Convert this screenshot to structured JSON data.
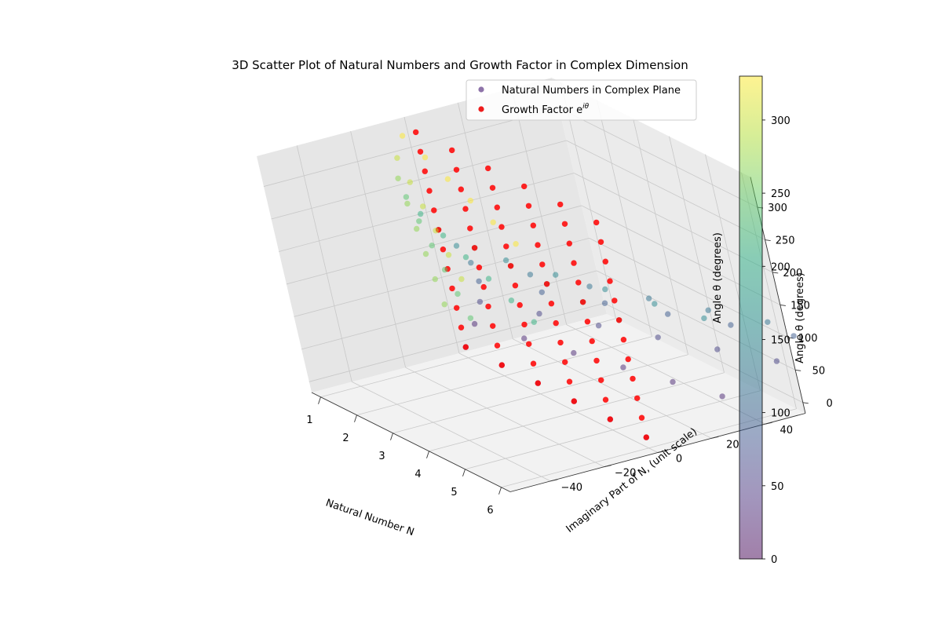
{
  "chart_data": {
    "type": "scatter",
    "projection": "3d",
    "title": "3D Scatter Plot of Natural Numbers and Growth Factor in Complex Dimension",
    "xlabel": "Natural Number N",
    "ylabel": "Imaginary Part of N, (unit scale)",
    "zlabel": "Angle θ (degrees)",
    "xlim": [
      0.75,
      6.25
    ],
    "ylim": [
      -55,
      55
    ],
    "zlim": [
      -16.5,
      346.5
    ],
    "x_ticks": [
      "1",
      "2",
      "3",
      "4",
      "5",
      "6"
    ],
    "y_ticks": [
      "−40",
      "−20",
      "0",
      "20",
      "40"
    ],
    "z_ticks": [
      "0",
      "50",
      "100",
      "150",
      "200",
      "250",
      "300"
    ],
    "grid": true,
    "legend_placement": "upper right",
    "legend": [
      {
        "label": "Natural Numbers in Complex Plane",
        "color": "#7a5a9a",
        "marker": "circle"
      },
      {
        "label": "Growth Factor e",
        "label_superscript": "iθ",
        "color": "#ee1c1c",
        "marker": "circle"
      }
    ],
    "colorbar": {
      "label": "Angle θ (degrees)",
      "colormap": "viridis",
      "alpha": 0.5,
      "range": [
        0,
        330
      ],
      "ticks": [
        "0",
        "50",
        "100",
        "150",
        "200",
        "250",
        "300"
      ]
    },
    "series": [
      {
        "name": "Natural Numbers in Complex Plane",
        "color_by": "angle",
        "x": [
          1,
          2,
          3,
          4,
          5,
          6
        ],
        "angles_deg": [
          0,
          30,
          60,
          90,
          120,
          150,
          180,
          210,
          240,
          270,
          300,
          330
        ],
        "y_formula": "N * sin(theta) * 10",
        "z": "angle"
      },
      {
        "name": "Growth Factor e^{iθ}",
        "color": "#ff0000",
        "x": [
          1,
          2,
          3,
          4,
          5,
          6
        ],
        "angles_deg": [
          0,
          30,
          60,
          90,
          120,
          150,
          180,
          210,
          240,
          270,
          300,
          330
        ],
        "y": 0,
        "z": "angle"
      }
    ]
  }
}
